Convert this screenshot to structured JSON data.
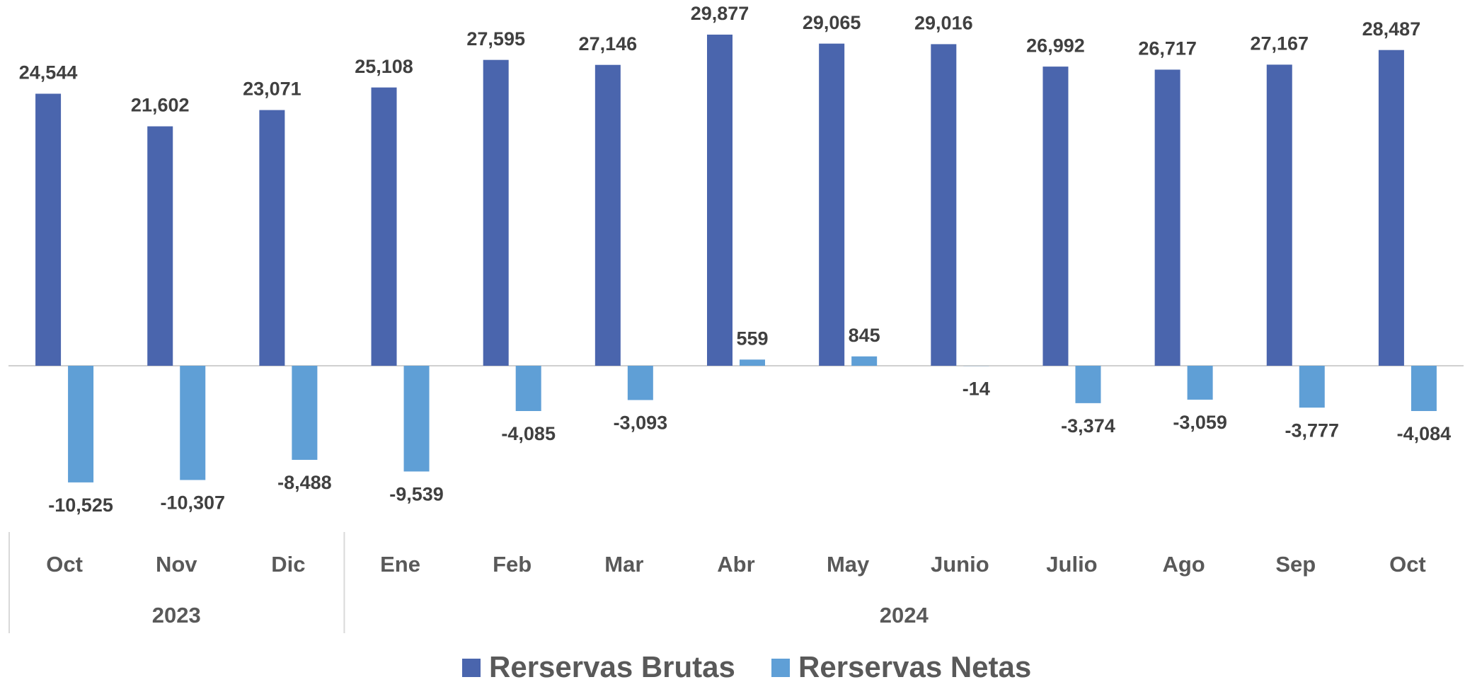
{
  "chart_data": {
    "type": "bar",
    "categories": [
      "Oct",
      "Nov",
      "Dic",
      "Ene",
      "Feb",
      "Mar",
      "Abr",
      "May",
      "Junio",
      "Julio",
      "Ago",
      "Sep",
      "Oct"
    ],
    "groups": [
      {
        "name": "2023",
        "count": 3
      },
      {
        "name": "2024",
        "count": 10
      }
    ],
    "series": [
      {
        "name": "Rerservas Brutas",
        "color": "#4a65ad",
        "values": [
          24544,
          21602,
          23071,
          25108,
          27595,
          27146,
          29877,
          29065,
          29016,
          26992,
          26717,
          27167,
          28487
        ],
        "value_labels": [
          "24,544",
          "21,602",
          "23,071",
          "25,108",
          "27,595",
          "27,146",
          "29,877",
          "29,065",
          "29,016",
          "26,992",
          "26,717",
          "27,167",
          "28,487"
        ]
      },
      {
        "name": "Rerservas Netas",
        "color": "#5f9fd6",
        "values": [
          -10525,
          -10307,
          -8488,
          -9539,
          -4085,
          -3093,
          559,
          845,
          -14,
          -3374,
          -3059,
          -3777,
          -4084
        ],
        "value_labels": [
          "-10,525",
          "-10,307",
          "-8,488",
          "-9,539",
          "-4,085",
          "-3,093",
          "559",
          "845",
          "-14",
          "-3,374",
          "-3,059",
          "-3,777",
          "-4,084"
        ]
      }
    ],
    "ylim": [
      -15000,
      33000
    ],
    "grid": false,
    "legend": "bottom"
  }
}
